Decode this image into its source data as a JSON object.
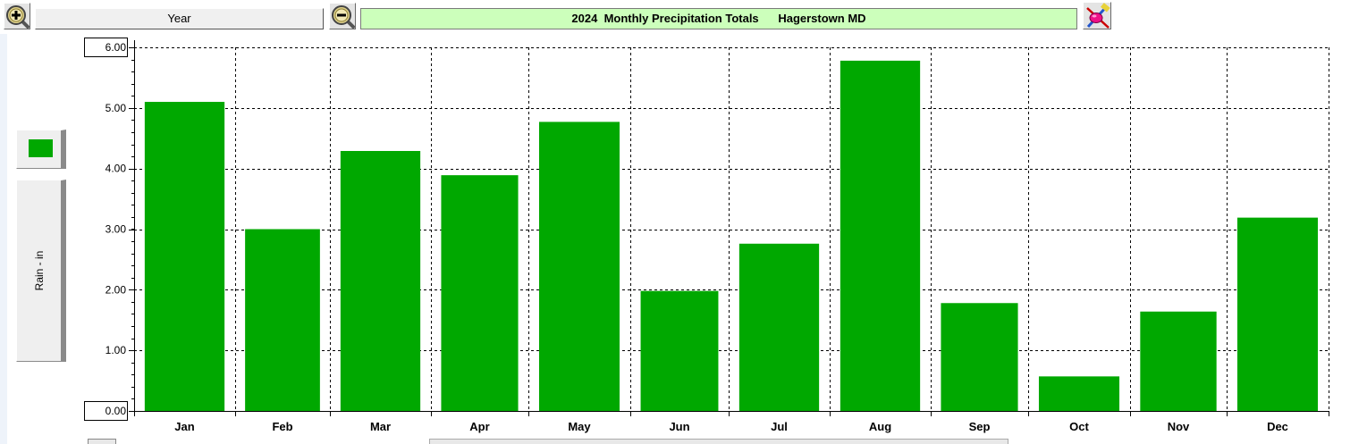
{
  "toolbar": {
    "zoom_in_icon": "magnifier-plus-icon",
    "period_label": "Year",
    "zoom_out_icon": "magnifier-minus-icon",
    "title": "2024  Monthly Precipitation Totals      Hagerstown MD",
    "tools_icon": "paint-tools-icon"
  },
  "colors": {
    "bar": "#00a800",
    "title_background": "#ccffbb",
    "grid": "#000000"
  },
  "chart_data": {
    "type": "bar",
    "title": "2024  Monthly Precipitation Totals      Hagerstown MD",
    "ylabel": "Rain - in",
    "xlabel": "",
    "categories": [
      "Jan",
      "Feb",
      "Mar",
      "Apr",
      "May",
      "Jun",
      "Jul",
      "Aug",
      "Sep",
      "Oct",
      "Nov",
      "Dec"
    ],
    "values": [
      5.1,
      3.0,
      4.29,
      3.89,
      4.77,
      1.98,
      2.76,
      5.78,
      1.78,
      0.57,
      1.64,
      3.19
    ],
    "ylim": [
      0,
      6
    ],
    "yticks": [
      "0.00",
      "1.00",
      "2.00",
      "3.00",
      "4.00",
      "5.00",
      "6.00"
    ],
    "grid": true,
    "legend": "left",
    "series_color": "#00a800"
  }
}
